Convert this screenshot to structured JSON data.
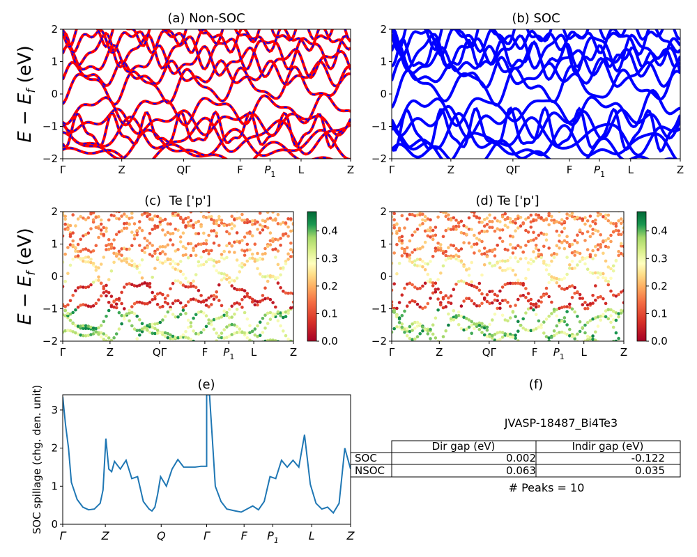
{
  "figure_id": "JVASP-18487_Bi4Te3",
  "panels": {
    "a": {
      "title": "(a) Non-SOC"
    },
    "b": {
      "title": "(b) SOC"
    },
    "c": {
      "title": "(c)  Te ['p']"
    },
    "d": {
      "title": "(d) Te ['p']"
    },
    "e": {
      "title": "(e)"
    },
    "f": {
      "title": "(f)"
    }
  },
  "ylabel_energy": "E − E_f (eV)",
  "ylabel_spillage": "SOC spillage (chg. den. unit)",
  "kpath": [
    "Γ",
    "Z",
    "QΓ",
    "F",
    "P1",
    "L",
    "Z"
  ],
  "kpath_spillage": [
    "Γ",
    "Z",
    "Q",
    "Γ",
    "F",
    "P1",
    "L",
    "Z"
  ],
  "colorbar_ticks": [
    "0.0",
    "0.1",
    "0.2",
    "0.3",
    "0.4"
  ],
  "table": {
    "headers": [
      "",
      "Dir gap (eV)",
      "Indir gap (eV)"
    ],
    "rows": [
      {
        "label": "SOC",
        "dir": "0.002",
        "indir": "-0.122"
      },
      {
        "label": "NSOC",
        "dir": "0.063",
        "indir": "0.035"
      }
    ],
    "peaks": "# Peaks = 10"
  },
  "chart_data": [
    {
      "type": "line",
      "panel": "a",
      "title": "(a) Non-SOC",
      "ylabel": "E − E_f (eV)",
      "ylim": [
        -2,
        2
      ],
      "yticks": [
        -2,
        -1,
        0,
        1,
        2
      ],
      "xticks": [
        "Γ",
        "Z",
        "QΓ",
        "F",
        "P1",
        "L",
        "Z"
      ],
      "series_colors": [
        "#ff0000",
        "#0000ff"
      ],
      "note": "band structure, red solid overlaid with blue dashed"
    },
    {
      "type": "line",
      "panel": "b",
      "title": "(b) SOC",
      "ylim": [
        -2,
        2
      ],
      "yticks": [
        -2,
        -1,
        0,
        1,
        2
      ],
      "xticks": [
        "Γ",
        "Z",
        "QΓ",
        "F",
        "P1",
        "L",
        "Z"
      ],
      "series_colors": [
        "#0000ff"
      ]
    },
    {
      "type": "scatter",
      "panel": "c",
      "title": "(c)  Te ['p']",
      "ylabel": "E − E_f (eV)",
      "ylim": [
        -2,
        2
      ],
      "xticks": [
        "Γ",
        "Z",
        "QΓ",
        "F",
        "P1",
        "L",
        "Z"
      ],
      "colorbar": {
        "min": 0.0,
        "max": 0.47,
        "ticks": [
          0.0,
          0.1,
          0.2,
          0.3,
          0.4
        ],
        "cmap": "RdYlGn"
      }
    },
    {
      "type": "scatter",
      "panel": "d",
      "title": "(d) Te ['p']",
      "ylim": [
        -2,
        2
      ],
      "xticks": [
        "Γ",
        "Z",
        "QΓ",
        "F",
        "P1",
        "L",
        "Z"
      ],
      "colorbar": {
        "min": 0.0,
        "max": 0.47,
        "ticks": [
          0.0,
          0.1,
          0.2,
          0.3,
          0.4
        ],
        "cmap": "RdYlGn"
      }
    },
    {
      "type": "line",
      "panel": "e",
      "title": "(e)",
      "ylabel": "SOC spillage (chg. den. unit)",
      "ylim": [
        0,
        3.4
      ],
      "yticks": [
        0,
        1,
        2,
        3
      ],
      "xticks": [
        "Γ",
        "Z",
        "Q",
        "Γ",
        "F",
        "P1",
        "L",
        "Z"
      ],
      "series_color": "#1f77b4",
      "x": [
        0,
        0.01,
        0.02,
        0.03,
        0.05,
        0.07,
        0.09,
        0.11,
        0.13,
        0.14,
        0.15,
        0.16,
        0.17,
        0.18,
        0.2,
        0.22,
        0.24,
        0.26,
        0.28,
        0.3,
        0.31,
        0.32,
        0.33,
        0.34,
        0.36,
        0.38,
        0.4,
        0.42,
        0.44,
        0.46,
        0.48,
        0.5,
        0.5,
        0.51,
        0.52,
        0.53,
        0.55,
        0.57,
        0.6,
        0.62,
        0.64,
        0.66,
        0.68,
        0.7,
        0.72,
        0.74,
        0.76,
        0.78,
        0.8,
        0.82,
        0.84,
        0.86,
        0.88,
        0.9,
        0.92,
        0.94,
        0.96,
        0.98,
        1.0
      ],
      "y": [
        3.35,
        2.6,
        2.0,
        1.1,
        0.65,
        0.45,
        0.38,
        0.4,
        0.55,
        0.9,
        2.25,
        1.45,
        1.38,
        1.65,
        1.45,
        1.68,
        1.2,
        1.25,
        0.6,
        0.4,
        0.35,
        0.45,
        0.8,
        1.25,
        1.0,
        1.45,
        1.7,
        1.5,
        1.5,
        1.5,
        1.52,
        1.52,
        3.4,
        3.4,
        2.2,
        1.0,
        0.6,
        0.4,
        0.35,
        0.32,
        0.4,
        0.48,
        0.38,
        0.6,
        1.25,
        1.2,
        1.68,
        1.5,
        1.68,
        1.5,
        2.35,
        1.05,
        0.55,
        0.4,
        0.45,
        0.3,
        0.55,
        2.0,
        1.45
      ]
    },
    {
      "type": "table",
      "panel": "f",
      "title": "(f)",
      "caption": "JVASP-18487_Bi4Te3",
      "columns": [
        "Dir gap (eV)",
        "Indir gap (eV)"
      ],
      "rows": [
        [
          "SOC",
          0.002,
          -0.122
        ],
        [
          "NSOC",
          0.063,
          0.035
        ]
      ],
      "footer": "# Peaks = 10"
    }
  ]
}
